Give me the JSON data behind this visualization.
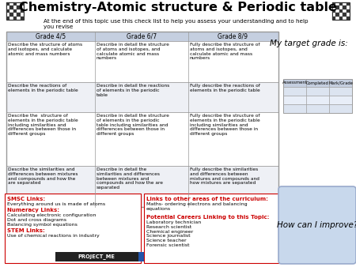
{
  "title": "Chemistry-Atomic structure & Periodic table",
  "subtitle": "At the end of this topic use this check list to help you assess your understanding and to help\nyou revise",
  "table_headers": [
    "Grade 4/5",
    "Grade 6/7",
    "Grade 8/9"
  ],
  "table_rows": [
    [
      "Describe the structure of atoms\nand isotopes, and calculate\natomic and mass numbers",
      "Describe in detail the structure\nof atoms and isotopes, and\ncalculate atomic and mass\nnumbers",
      "Fully describe the structure of\natoms and isotopes, and\ncalculate atomic and mass\nnumbers"
    ],
    [
      "Describe the reactions of\nelements in the periodic table",
      "Describe in detail the reactions\nof elements in the periodic\ntable",
      "Fully describe the reactions of\nelements in the periodic table"
    ],
    [
      "Describe the  structure of\nelements in the periodic table\nincluding similarities and\ndifferences between those in\ndifferent groups",
      "Describe in detail the structure\nof elements in the periodic\ntable including similarities and\ndifferences between those in\ndifferent groups",
      "Fully describe the structure of\nelements in the periodic table\nincluding similarities and\ndifferences between those in\ndifferent groups"
    ],
    [
      "Describe the similarities and\ndifferences between mixtures\nand compounds and how the\nare separated",
      "Describe in detail the\nsimilarities and differences\nbetween mixtures and\ncompounds and how the are\nseparated",
      "Fully describe the similarities\nand differences between\nmixtures and compounds and\nhow mixtures are separated"
    ]
  ],
  "smsc_title": "SMSC Links:",
  "smsc_content": "Everything around us is made of atoms",
  "numeracy_title": "Numeracy Links:",
  "numeracy_content": "Calculating electronic configuration\nDot and cross diagrams\nBalancing symbol equations",
  "stem_title": "STEM Links:",
  "stem_content": "Use of chemical reactions in industry",
  "links_title": "Links to other areas of the curriculum:",
  "links_content": "Maths- ordering electrons and balancing\nequations",
  "careers_title": "Potential Careers Linking to this Topic:",
  "careers_content": "Laboratory technician\nResearch scientist\nChemical engineer\nScience journalist\nScience teacher\nForensic scientist",
  "target_grade_text": "My target grade is:",
  "improve_text": "How can I improve?",
  "assessment_headers": [
    "Assessment",
    "Completed",
    "Mark/Grade"
  ],
  "red_color": "#cc0000",
  "header_bg": "#c5cfe0",
  "table_border": "#999999",
  "improve_bg": "#c8d8ec",
  "smsc_border": "#cc0000",
  "links_border": "#cc0000",
  "row_bg_even": "#ffffff",
  "row_bg_odd": "#eef0f5"
}
